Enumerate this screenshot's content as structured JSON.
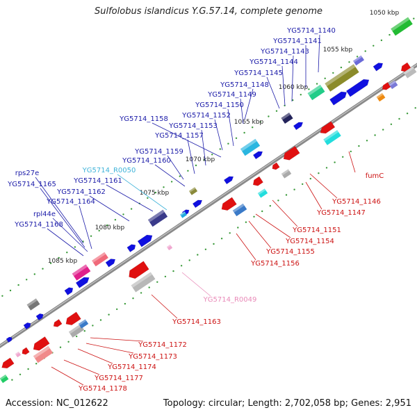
{
  "header": {
    "title": "Sulfolobus islandicus Y.G.57.14, complete genome"
  },
  "footer": {
    "accession": "Accession: NC_012622",
    "summary": "Topology: circular; Length: 2,702,058 bp; Genes: 2,951"
  },
  "colors": {
    "upper_label": "#1a1aa8",
    "lower_label": "#cc1111",
    "rna_label": "#3fb3d9",
    "rna_label_lower": "#e98ab8",
    "axis": "#777777",
    "tick": "#2a8a2a"
  },
  "scale_ticks": [
    {
      "label": "1050 kbp"
    },
    {
      "label": "1055 kbp"
    },
    {
      "label": "1060 kbp"
    },
    {
      "label": "1065 kbp"
    },
    {
      "label": "1070 kbp"
    },
    {
      "label": "1075 kbp"
    },
    {
      "label": "1080 kbp"
    },
    {
      "label": "1085 kbp"
    }
  ],
  "genes_upper": [
    {
      "name": "YG5714_1140"
    },
    {
      "name": "YG5714_1141"
    },
    {
      "name": "YG5714_1143"
    },
    {
      "name": "YG5714_1144"
    },
    {
      "name": "YG5714_1145"
    },
    {
      "name": "YG5714_1148"
    },
    {
      "name": "YG5714_1149"
    },
    {
      "name": "YG5714_1150"
    },
    {
      "name": "YG5714_1152"
    },
    {
      "name": "YG5714_1158"
    },
    {
      "name": "YG5714_1153"
    },
    {
      "name": "YG5714_1157"
    },
    {
      "name": "YG5714_1159"
    },
    {
      "name": "YG5714_1160"
    },
    {
      "name": "YG5714_R0050"
    },
    {
      "name": "rps27e"
    },
    {
      "name": "YG5714_1161"
    },
    {
      "name": "YG5714_1165"
    },
    {
      "name": "YG5714_1162"
    },
    {
      "name": "YG5714_1164"
    },
    {
      "name": "rpl44e"
    },
    {
      "name": "YG5714_1168"
    }
  ],
  "genes_lower": [
    {
      "name": "fumC"
    },
    {
      "name": "YG5714_1146"
    },
    {
      "name": "YG5714_1147"
    },
    {
      "name": "YG5714_1151"
    },
    {
      "name": "YG5714_1154"
    },
    {
      "name": "YG5714_1155"
    },
    {
      "name": "YG5714_1156"
    },
    {
      "name": "YG5714_R0049"
    },
    {
      "name": "YG5714_1163"
    },
    {
      "name": "YG5714_1172"
    },
    {
      "name": "YG5714_1173"
    },
    {
      "name": "YG5714_1174"
    },
    {
      "name": "YG5714_1177"
    },
    {
      "name": "YG5714_1178"
    }
  ]
}
